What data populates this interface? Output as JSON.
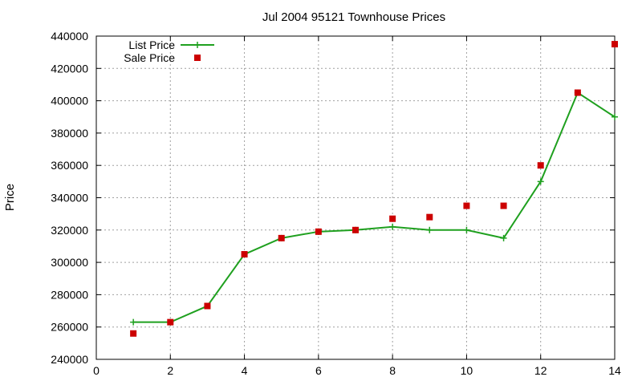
{
  "chart_data": {
    "type": "line",
    "title": "Jul 2004 95121 Townhouse Prices",
    "xlabel": "",
    "ylabel": "Price",
    "xlim": [
      0,
      14
    ],
    "ylim": [
      240000,
      440000
    ],
    "x_ticks": [
      0,
      2,
      4,
      6,
      8,
      10,
      12,
      14
    ],
    "y_ticks": [
      240000,
      260000,
      280000,
      300000,
      320000,
      340000,
      360000,
      380000,
      400000,
      420000,
      440000
    ],
    "grid": true,
    "legend_position": "top-left",
    "series": [
      {
        "name": "List Price",
        "style": "line-with-plus-markers",
        "color": "#1fa01f",
        "x": [
          1,
          2,
          3,
          4,
          5,
          6,
          7,
          8,
          9,
          10,
          11,
          12,
          13,
          14
        ],
        "y": [
          263000,
          263000,
          273000,
          305000,
          315000,
          319000,
          320000,
          322000,
          320000,
          320000,
          315000,
          350000,
          405000,
          390000
        ]
      },
      {
        "name": "Sale Price",
        "style": "square-markers",
        "color": "#cc0000",
        "x": [
          1,
          2,
          3,
          4,
          5,
          6,
          7,
          8,
          9,
          10,
          11,
          12,
          13,
          14
        ],
        "y": [
          256000,
          263000,
          273000,
          305000,
          315000,
          319000,
          320000,
          327000,
          328000,
          335000,
          335000,
          360000,
          405000,
          435000
        ]
      }
    ]
  }
}
